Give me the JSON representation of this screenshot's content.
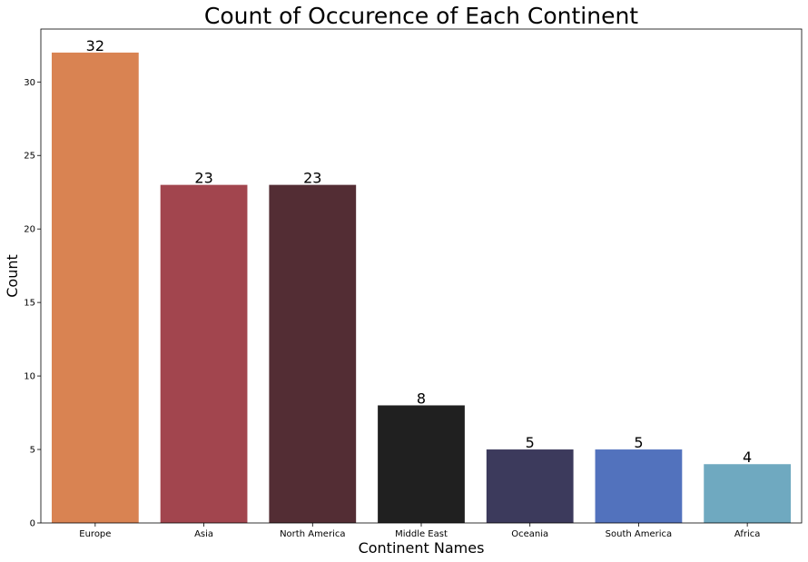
{
  "chart_data": {
    "type": "bar",
    "title": "Count of Occurence of Each Continent",
    "xlabel": "Continent Names",
    "ylabel": "Count",
    "categories": [
      "Europe",
      "Asia",
      "North America",
      "Middle East",
      "Oceania",
      "South America",
      "Africa"
    ],
    "values": [
      32,
      23,
      23,
      8,
      5,
      5,
      4
    ],
    "data_labels": [
      "32",
      "23",
      "23",
      "8",
      "5",
      "5",
      "4"
    ],
    "colors": [
      "#d98352",
      "#a2454e",
      "#532d34",
      "#202020",
      "#3c3a5c",
      "#5272bd",
      "#6fa9c0"
    ],
    "ylim": [
      0,
      33.6
    ],
    "yticks": [
      0,
      5,
      10,
      15,
      20,
      25,
      30
    ],
    "ytick_labels": [
      "0",
      "5",
      "10",
      "15",
      "20",
      "25",
      "30"
    ],
    "grid": false,
    "legend": "none"
  }
}
